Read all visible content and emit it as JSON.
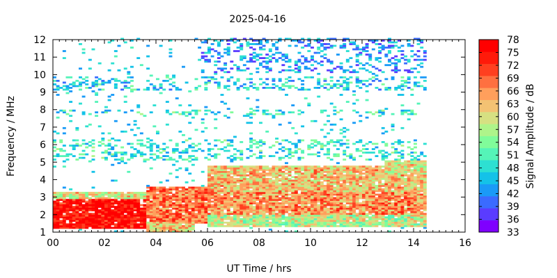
{
  "chart_data": {
    "type": "heatmap",
    "title": "2025-04-16",
    "xlabel": "UT Time / hrs",
    "ylabel": "Frequency / MHz",
    "colorbar_label": "Signal Amplitude / dB",
    "xlim": [
      0,
      16
    ],
    "ylim": [
      1,
      12
    ],
    "x_ticks": [
      "00",
      "02",
      "04",
      "06",
      "08",
      "10",
      "12",
      "14",
      "16"
    ],
    "y_ticks": [
      "1",
      "2",
      "3",
      "4",
      "5",
      "6",
      "7",
      "8",
      "9",
      "10",
      "11",
      "12"
    ],
    "colorbar_ticks": [
      "33",
      "36",
      "39",
      "42",
      "45",
      "48",
      "51",
      "54",
      "57",
      "60",
      "63",
      "66",
      "69",
      "72",
      "75",
      "78"
    ],
    "colorbar_range": [
      33,
      78
    ],
    "colormap": [
      "#7f00ff",
      "#5a3cff",
      "#3a6bff",
      "#1a9af7",
      "#14c2e8",
      "#2de0d2",
      "#55f4b8",
      "#80fc9a",
      "#aef48a",
      "#d6e082",
      "#f3c273",
      "#ff9f5c",
      "#ff7040",
      "#ff4020",
      "#ff1a0a",
      "#ff0000"
    ],
    "data_extent_hours": [
      0,
      14.5
    ],
    "bands": [
      {
        "t": [
          0,
          3.6
        ],
        "f": [
          1.2,
          2.9
        ],
        "level": 76
      },
      {
        "t": [
          0,
          3.6
        ],
        "f": [
          2.9,
          3.3
        ],
        "level": 60
      },
      {
        "t": [
          3.6,
          7.5
        ],
        "f": [
          1.5,
          3.6
        ],
        "level": 68
      },
      {
        "t": [
          3.6,
          5.5
        ],
        "f": [
          1.0,
          1.6
        ],
        "level": 62
      },
      {
        "t": [
          6,
          14.4
        ],
        "f": [
          1.3,
          2.0
        ],
        "level": 58
      },
      {
        "t": [
          6,
          14.4
        ],
        "f": [
          2.0,
          3.3
        ],
        "level": 66
      },
      {
        "t": [
          6,
          14.4
        ],
        "f": [
          3.3,
          4.8
        ],
        "level": 63
      },
      {
        "t": [
          12.8,
          14.4
        ],
        "f": [
          4.3,
          5.6
        ],
        "level": 60
      },
      {
        "t": [
          0,
          14.4
        ],
        "f": [
          5.0,
          6.2
        ],
        "level": 49
      },
      {
        "t": [
          0,
          14.4
        ],
        "f": [
          7.6,
          7.9
        ],
        "level": 49
      },
      {
        "t": [
          0,
          14.4
        ],
        "f": [
          9.0,
          9.8
        ],
        "level": 47
      },
      {
        "t": [
          5.7,
          14.4
        ],
        "f": [
          10.0,
          12.0
        ],
        "level": 43
      }
    ]
  }
}
